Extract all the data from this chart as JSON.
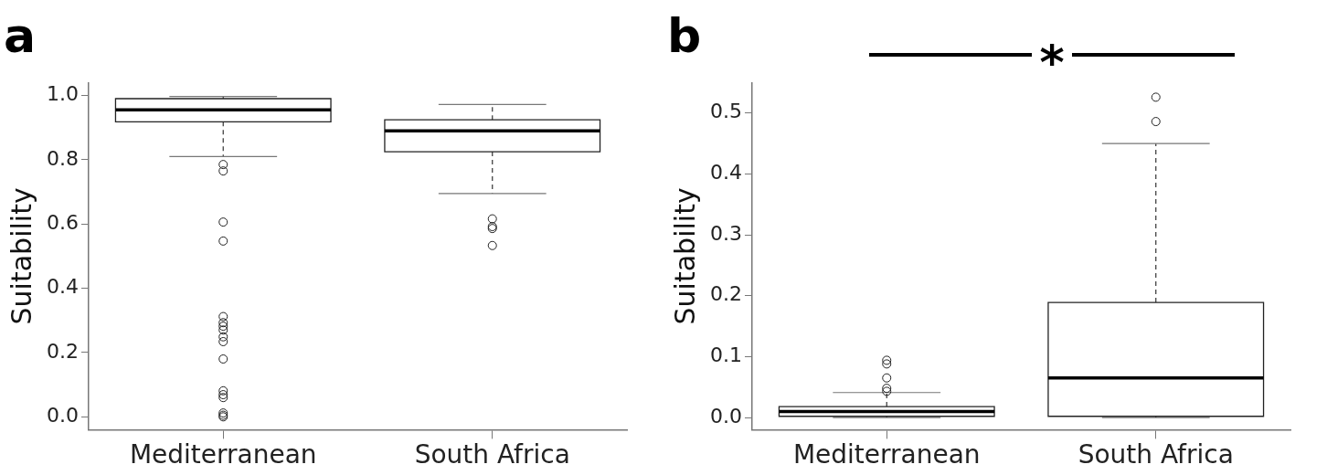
{
  "chart_data": [
    {
      "type": "box",
      "title": "a",
      "ylabel": "Suitability",
      "categories": [
        "Mediterranean",
        "South Africa"
      ],
      "boxes": [
        {
          "low": 0.81,
          "q1": 0.918,
          "median": 0.955,
          "q3": 0.99,
          "high": 0.997,
          "outliers": [
            0.785,
            0.765,
            0.606,
            0.547,
            0.312,
            0.293,
            0.282,
            0.27,
            0.249,
            0.234,
            0.18,
            0.081,
            0.069,
            0.06,
            0.012,
            0.005,
            0.0
          ]
        },
        {
          "low": 0.695,
          "q1": 0.825,
          "median": 0.89,
          "q3": 0.924,
          "high": 0.972,
          "outliers": [
            0.616,
            0.592,
            0.586,
            0.533
          ]
        }
      ],
      "ylim": [
        -0.04,
        1.04
      ],
      "yticks": [
        {
          "value": 0,
          "label": "0.0"
        },
        {
          "value": 0.2,
          "label": "0.2"
        },
        {
          "value": 0.4,
          "label": "0.4"
        },
        {
          "value": 0.6,
          "label": "0.6"
        },
        {
          "value": 0.8,
          "label": "0.8"
        },
        {
          "value": 1,
          "label": "1.0"
        }
      ],
      "grid": false,
      "marker": "circle"
    },
    {
      "type": "box",
      "title": "b",
      "ylabel": "Suitability",
      "categories": [
        "Mediterranean",
        "South Africa"
      ],
      "boxes": [
        {
          "low": 0.0,
          "q1": 0.002,
          "median": 0.01,
          "q3": 0.018,
          "high": 0.041,
          "outliers": [
            0.094,
            0.088,
            0.065,
            0.048,
            0.043
          ]
        },
        {
          "low": 0.0,
          "q1": 0.002,
          "median": 0.065,
          "q3": 0.189,
          "high": 0.45,
          "outliers": [
            0.486,
            0.526
          ]
        }
      ],
      "ylim": [
        -0.02,
        0.55
      ],
      "yticks": [
        {
          "value": 0,
          "label": "0.0"
        },
        {
          "value": 0.1,
          "label": "0.1"
        },
        {
          "value": 0.2,
          "label": "0.2"
        },
        {
          "value": 0.3,
          "label": "0.3"
        },
        {
          "value": 0.4,
          "label": "0.4"
        },
        {
          "value": 0.5,
          "label": "0.5"
        }
      ],
      "grid": false,
      "marker": "circle",
      "annotations": [
        "*"
      ]
    }
  ]
}
